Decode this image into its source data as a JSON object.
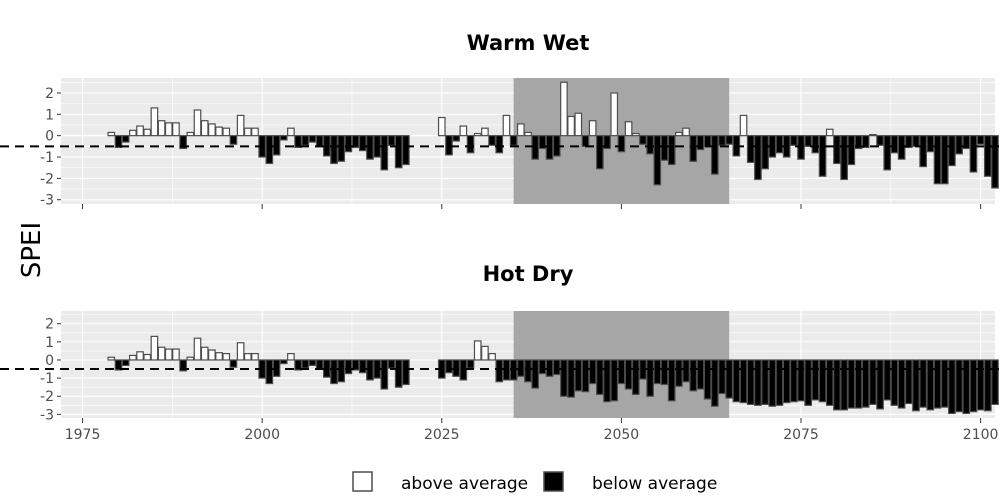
{
  "ylabel": "SPEI",
  "legend": {
    "above_label": "above average",
    "below_label": "below average",
    "above_color": "#ffffff",
    "below_color": "#000000"
  },
  "colors": {
    "panel_bg": "#ebebeb",
    "grid": "#ffffff",
    "shade": "#a6a6a6",
    "bar_outline": "#4d4d4d"
  },
  "chart_data": [
    {
      "type": "bar",
      "title": "Warm Wet",
      "xlabel": "",
      "ylabel": "SPEI",
      "xlim": [
        1972,
        2102
      ],
      "ylim": [
        -3.2,
        2.7
      ],
      "xticks": [
        1975,
        2000,
        2025,
        2050,
        2075,
        2100
      ],
      "yticks": [
        2,
        1,
        0,
        -1,
        -2,
        -3
      ],
      "ytick_labels": [
        "2",
        "1",
        "0",
        "-1",
        "-2",
        "-3"
      ],
      "threshold": -0.5,
      "shaded_range": [
        2035,
        2065
      ],
      "start_year": 1979,
      "values": [
        0.15,
        -0.55,
        -0.3,
        0.25,
        0.45,
        0.3,
        1.3,
        0.7,
        0.6,
        0.6,
        -0.6,
        0.15,
        1.2,
        0.7,
        0.55,
        0.4,
        0.35,
        -0.4,
        0.95,
        0.35,
        0.35,
        -1.0,
        -1.3,
        -0.9,
        -0.2,
        0.35,
        -0.55,
        -0.45,
        -0.3,
        -0.5,
        -0.95,
        -1.3,
        -1.2,
        -0.75,
        -0.55,
        -0.7,
        -1.1,
        -1.0,
        -1.6,
        -0.45,
        -1.5,
        -1.35,
        null,
        null,
        null,
        null,
        0.85,
        -0.9,
        -0.25,
        0.45,
        -0.8,
        0.1,
        0.35,
        -0.45,
        -0.8,
        0.95,
        -0.45,
        0.55,
        0.15,
        -1.1,
        -0.6,
        -1.1,
        -0.95,
        2.5,
        0.9,
        1.05,
        -0.5,
        0.7,
        -1.55,
        -0.6,
        2.0,
        -0.75,
        0.65,
        0.1,
        -0.4,
        -0.85,
        -2.3,
        -1.15,
        -1.35,
        0.15,
        0.35,
        -1.2,
        -0.65,
        -0.5,
        -1.8,
        -0.45,
        -0.4,
        -0.95,
        0.95,
        -1.25,
        -2.05,
        -1.55,
        -1.0,
        -0.8,
        -1.0,
        -0.45,
        -1.1,
        -0.5,
        -0.8,
        -1.9,
        0.3,
        -1.3,
        -2.05,
        -1.35,
        -0.6,
        -0.55,
        0.05,
        -0.45,
        -1.6,
        -0.8,
        -1.1,
        -0.55,
        -0.5,
        -1.45,
        -0.75,
        -2.25,
        -2.25,
        -1.4,
        -0.85,
        -0.6,
        -1.7,
        -0.4,
        -1.9,
        -2.45
      ]
    },
    {
      "type": "bar",
      "title": "Hot Dry",
      "xlabel": "",
      "ylabel": "SPEI",
      "xlim": [
        1972,
        2102
      ],
      "ylim": [
        -3.2,
        2.7
      ],
      "xticks": [
        1975,
        2000,
        2025,
        2050,
        2075,
        2100
      ],
      "xtick_labels": [
        "1975",
        "2000",
        "2025",
        "2050",
        "2075",
        "2100"
      ],
      "yticks": [
        2,
        1,
        0,
        -1,
        -2,
        -3
      ],
      "ytick_labels": [
        "2",
        "1",
        "0",
        "-1",
        "-2",
        "-3"
      ],
      "threshold": -0.5,
      "shaded_range": [
        2035,
        2065
      ],
      "start_year": 1979,
      "values": [
        0.15,
        -0.55,
        -0.3,
        0.25,
        0.45,
        0.3,
        1.3,
        0.7,
        0.6,
        0.6,
        -0.6,
        0.15,
        1.2,
        0.7,
        0.55,
        0.4,
        0.35,
        -0.4,
        0.95,
        0.35,
        0.35,
        -1.0,
        -1.3,
        -0.9,
        -0.2,
        0.35,
        -0.55,
        -0.45,
        -0.3,
        -0.5,
        -0.95,
        -1.3,
        -1.2,
        -0.75,
        -0.55,
        -0.7,
        -1.1,
        -1.0,
        -1.6,
        -0.45,
        -1.5,
        -1.35,
        null,
        null,
        null,
        null,
        -1.0,
        -0.7,
        -0.9,
        -1.1,
        -0.45,
        1.05,
        0.75,
        0.35,
        -1.2,
        -1.1,
        -1.1,
        -0.9,
        -1.2,
        -1.55,
        -0.75,
        -0.9,
        -0.8,
        -2.0,
        -2.05,
        -1.7,
        -1.75,
        -1.3,
        -1.9,
        -2.3,
        -2.25,
        -1.3,
        -1.6,
        -1.9,
        -1.05,
        -2.0,
        -1.3,
        -1.35,
        -2.25,
        -1.45,
        -1.2,
        -1.7,
        -1.6,
        -2.15,
        -2.55,
        -1.85,
        -2.1,
        -2.3,
        -2.35,
        -2.45,
        -2.5,
        -2.45,
        -2.55,
        -2.5,
        -2.35,
        -2.3,
        -2.25,
        -2.5,
        -2.2,
        -2.3,
        -2.5,
        -2.75,
        -2.75,
        -2.65,
        -2.65,
        -2.6,
        -2.45,
        -2.7,
        -2.2,
        -2.5,
        -2.65,
        -2.4,
        -2.8,
        -2.6,
        -2.75,
        -2.65,
        -2.6,
        -2.95,
        -2.85,
        -2.95,
        -2.85,
        -2.75,
        -2.8,
        -2.45
      ]
    }
  ]
}
